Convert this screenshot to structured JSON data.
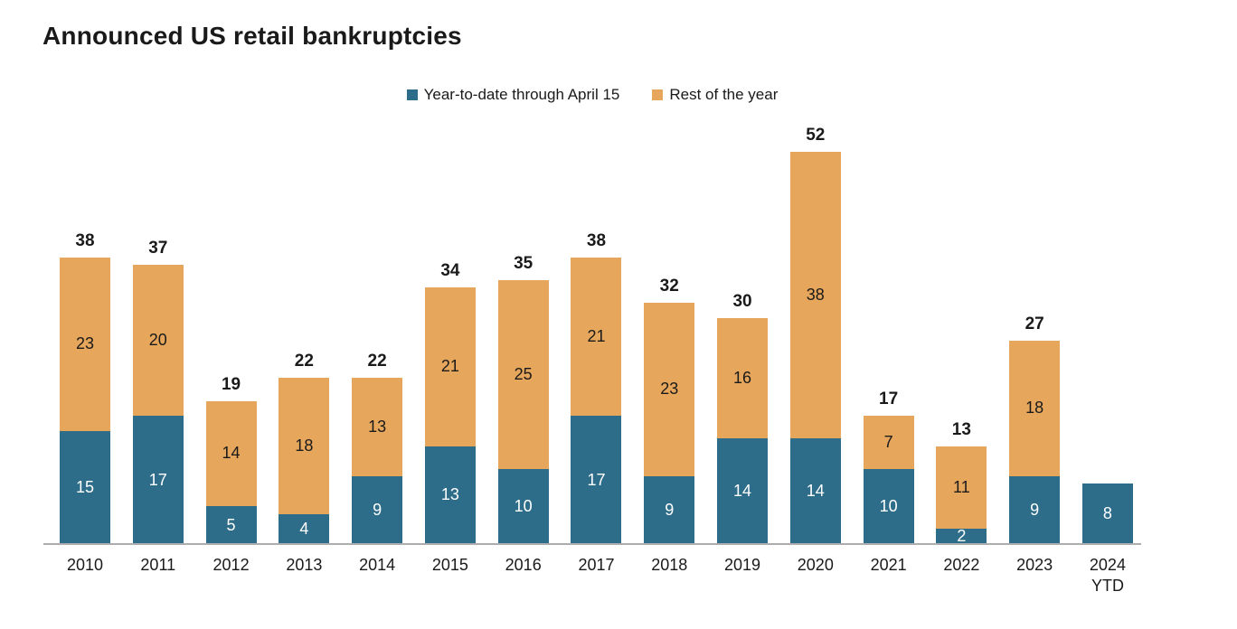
{
  "title": "Announced US retail bankruptcies",
  "chart_data": {
    "type": "bar",
    "stacked": true,
    "title": "Announced US retail bankruptcies",
    "legend_position": "top-center",
    "grid": false,
    "ylim": [
      0,
      52
    ],
    "axis_color": "#adadb0",
    "text_color": "#1a1a1a",
    "categories": [
      {
        "label": "2010"
      },
      {
        "label": "2011"
      },
      {
        "label": "2012"
      },
      {
        "label": "2013"
      },
      {
        "label": "2014"
      },
      {
        "label": "2015"
      },
      {
        "label": "2016"
      },
      {
        "label": "2017"
      },
      {
        "label": "2018"
      },
      {
        "label": "2019"
      },
      {
        "label": "2020"
      },
      {
        "label": "2021"
      },
      {
        "label": "2022"
      },
      {
        "label": "2023"
      },
      {
        "label": "2024",
        "sublabel": "YTD"
      }
    ],
    "series": [
      {
        "name": "Year-to-date through April 15",
        "color": "#2e6d8a",
        "label_color": "#ffffff",
        "values": [
          15,
          17,
          5,
          4,
          9,
          13,
          10,
          17,
          9,
          14,
          14,
          10,
          2,
          9,
          8
        ]
      },
      {
        "name": "Rest of the year",
        "color": "#e6a65b",
        "label_color": "#1a1a1a",
        "values": [
          23,
          20,
          14,
          18,
          13,
          21,
          25,
          21,
          23,
          16,
          38,
          7,
          11,
          18,
          0
        ]
      }
    ],
    "totals": [
      38,
      37,
      19,
      22,
      22,
      34,
      35,
      38,
      32,
      30,
      52,
      17,
      13,
      27,
      null
    ]
  }
}
